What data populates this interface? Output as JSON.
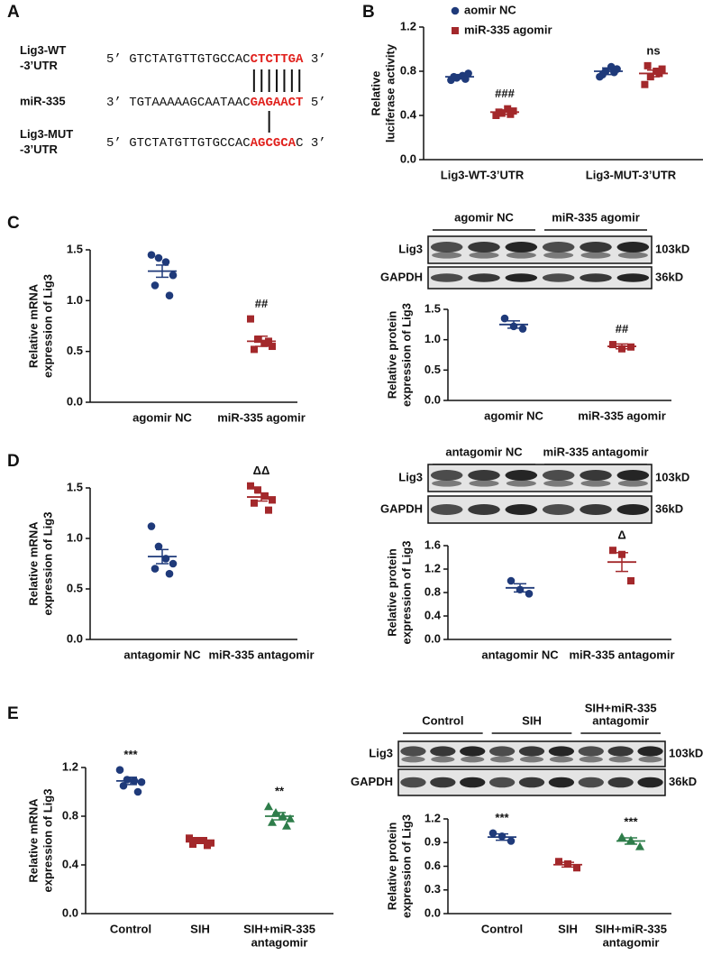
{
  "panel_labels": [
    "A",
    "B",
    "C",
    "D",
    "E"
  ],
  "sequences": {
    "rows": [
      {
        "label": [
          "Lig3-WT",
          "-3’UTR"
        ],
        "prefix": "5’ GTCTATGTTGTGCCAC",
        "highlight": "CTCTTGA",
        "suffix": " 3’"
      },
      {
        "label": [
          "miR-335"
        ],
        "prefix": "3’ TGTAAAAAGCAATAAC",
        "highlight": "GAGAACT",
        "suffix": " 5’"
      },
      {
        "label": [
          "Lig3-MUT",
          "-3’UTR"
        ],
        "prefix": "5’ GTCTATGTTGTGCCAC",
        "highlight": "AGCGCA",
        "suffix": "C 3’"
      }
    ]
  },
  "blots": [
    {
      "groups": [
        [
          "agomir NC"
        ],
        [
          "miR-335 agomir"
        ]
      ],
      "rows": [
        {
          "label": "Lig3",
          "size": "103kD"
        },
        {
          "label": "GAPDH",
          "size": "36kD"
        }
      ]
    },
    {
      "groups": [
        [
          "antagomir NC"
        ],
        [
          "miR-335 antagomir"
        ]
      ],
      "rows": [
        {
          "label": "Lig3",
          "size": "103kD"
        },
        {
          "label": "GAPDH",
          "size": "36kD"
        }
      ]
    },
    {
      "groups": [
        [
          "Control"
        ],
        [
          "SIH"
        ],
        [
          "SIH+miR-335",
          "antagomir"
        ]
      ],
      "rows": [
        {
          "label": "Lig3",
          "size": "103kD"
        },
        {
          "label": "GAPDH",
          "size": "36kD"
        }
      ]
    }
  ],
  "chart_data": [
    {
      "type": "dot",
      "y_label": [
        "Relative",
        "luciferase activity"
      ],
      "categories": [
        [
          "Lig3-WT-3’UTR"
        ],
        [
          "Lig3-MUT-3’UTR"
        ]
      ],
      "series": [
        {
          "name": "aomir NC",
          "color": "#1f3a7a",
          "marker": "circle",
          "points": [
            [
              0.72,
              0.74,
              0.76,
              0.78,
              0.75,
              0.73
            ],
            [
              0.75,
              0.8,
              0.84,
              0.82,
              0.77,
              0.79
            ]
          ],
          "values": [
            0.75,
            0.8
          ],
          "errors": [
            0.02,
            0.03
          ],
          "annotations": [
            null,
            null
          ]
        },
        {
          "name": "miR-335 agomir",
          "color": "#a3282b",
          "marker": "square",
          "points": [
            [
              0.4,
              0.42,
              0.46,
              0.44,
              0.43,
              0.41
            ],
            [
              0.68,
              0.75,
              0.8,
              0.82,
              0.85,
              0.78
            ]
          ],
          "values": [
            0.43,
            0.78
          ],
          "errors": [
            0.02,
            0.03
          ],
          "annotations": [
            "###",
            "ns"
          ]
        }
      ],
      "ylim": [
        0,
        1.2
      ],
      "yticks": [
        {
          "value": 0,
          "label": "0.0"
        },
        0.4,
        0.8,
        1.2
      ],
      "legend": "top"
    },
    {
      "type": "dot",
      "y_label": [
        "Relative mRNA",
        "expression of Lig3"
      ],
      "categories": [
        [
          "agomir NC"
        ],
        [
          "miR-335 agomir"
        ]
      ],
      "colors": [
        "#1f3a7a",
        "#a3282b"
      ],
      "markers": [
        "circle",
        "square"
      ],
      "points": [
        [
          1.45,
          1.42,
          1.38,
          1.25,
          1.15,
          1.05
        ],
        [
          0.82,
          0.62,
          0.58,
          0.55,
          0.52,
          0.6
        ]
      ],
      "values": [
        1.29,
        0.6
      ],
      "errors": [
        0.06,
        0.05
      ],
      "annotations": [
        null,
        "##"
      ],
      "ylim": [
        0,
        1.5
      ],
      "yticks": [
        {
          "value": 0,
          "label": "0.0"
        },
        0.5,
        {
          "value": 1,
          "label": "1.0"
        },
        1.5
      ]
    },
    {
      "type": "dot",
      "y_label": [
        "Relative protein",
        "expression of Lig3"
      ],
      "categories": [
        [
          "agomir NC"
        ],
        [
          "miR-335 agomir"
        ]
      ],
      "colors": [
        "#1f3a7a",
        "#a3282b"
      ],
      "markers": [
        "circle",
        "square"
      ],
      "points": [
        [
          1.35,
          1.22,
          1.18
        ],
        [
          0.92,
          0.85,
          0.88
        ]
      ],
      "values": [
        1.25,
        0.89
      ],
      "errors": [
        0.06,
        0.04
      ],
      "annotations": [
        null,
        "##"
      ],
      "ylim": [
        0,
        1.5
      ],
      "yticks": [
        {
          "value": 0,
          "label": "0.0"
        },
        0.5,
        {
          "value": 1,
          "label": "1.0"
        },
        1.5
      ]
    },
    {
      "type": "dot",
      "y_label": [
        "Relative mRNA",
        "expression of Lig3"
      ],
      "categories": [
        [
          "antagomir NC"
        ],
        [
          "miR-335 antagomir"
        ]
      ],
      "colors": [
        "#1f3a7a",
        "#a3282b"
      ],
      "markers": [
        "circle",
        "square"
      ],
      "points": [
        [
          1.12,
          0.92,
          0.8,
          0.75,
          0.7,
          0.65
        ],
        [
          1.52,
          1.48,
          1.42,
          1.38,
          1.35,
          1.28
        ]
      ],
      "values": [
        0.82,
        1.41
      ],
      "errors": [
        0.07,
        0.04
      ],
      "annotations": [
        null,
        "ΔΔ"
      ],
      "ylim": [
        0,
        1.5
      ],
      "yticks": [
        {
          "value": 0,
          "label": "0.0"
        },
        0.5,
        {
          "value": 1,
          "label": "1.0"
        },
        1.5
      ]
    },
    {
      "type": "dot",
      "y_label": [
        "Relative protein",
        "expression of Lig3"
      ],
      "categories": [
        [
          "antagomir NC"
        ],
        [
          "miR-335 antagomir"
        ]
      ],
      "colors": [
        "#1f3a7a",
        "#a3282b"
      ],
      "markers": [
        "circle",
        "square"
      ],
      "points": [
        [
          1.0,
          0.85,
          0.78
        ],
        [
          1.52,
          1.45,
          1.0
        ]
      ],
      "values": [
        0.88,
        1.32
      ],
      "errors": [
        0.07,
        0.16
      ],
      "annotations": [
        null,
        "Δ"
      ],
      "ylim": [
        0,
        1.6
      ],
      "yticks": [
        {
          "value": 0,
          "label": "0.0"
        },
        0.4,
        0.8,
        1.2,
        1.6
      ]
    },
    {
      "type": "dot",
      "y_label": [
        "Relative mRNA",
        "expression of Lig3"
      ],
      "categories": [
        [
          "Control"
        ],
        [
          "SIH"
        ],
        [
          "SIH+miR-335",
          "antagomir"
        ]
      ],
      "colors": [
        "#1f3a7a",
        "#a3282b",
        "#2e7d4a"
      ],
      "markers": [
        "circle",
        "square",
        "triangle"
      ],
      "points": [
        [
          1.18,
          1.1,
          1.09,
          1.08,
          1.05,
          1.0
        ],
        [
          0.62,
          0.6,
          0.6,
          0.58,
          0.57,
          0.56
        ],
        [
          0.88,
          0.83,
          0.8,
          0.78,
          0.75,
          0.72
        ]
      ],
      "values": [
        1.09,
        0.59,
        0.8
      ],
      "errors": [
        0.03,
        0.01,
        0.03
      ],
      "annotations": [
        "***",
        null,
        "**"
      ],
      "ylim": [
        0,
        1.2
      ],
      "yticks": [
        {
          "value": 0,
          "label": "0.0"
        },
        0.4,
        0.8,
        1.2
      ]
    },
    {
      "type": "dot",
      "y_label": [
        "Relative protein",
        "expression of Lig3"
      ],
      "categories": [
        [
          "Control"
        ],
        [
          "SIH"
        ],
        [
          "SIH+miR-335",
          "antagomir"
        ]
      ],
      "colors": [
        "#1f3a7a",
        "#a3282b",
        "#2e7d4a"
      ],
      "markers": [
        "circle",
        "square",
        "triangle"
      ],
      "points": [
        [
          1.02,
          0.98,
          0.92
        ],
        [
          0.66,
          0.63,
          0.58
        ],
        [
          0.97,
          0.93,
          0.85
        ]
      ],
      "values": [
        0.97,
        0.62,
        0.92
      ],
      "errors": [
        0.04,
        0.03,
        0.04
      ],
      "annotations": [
        "***",
        null,
        "***"
      ],
      "ylim": [
        0,
        1.2
      ],
      "yticks": [
        {
          "value": 0,
          "label": "0.0"
        },
        0.3,
        0.6,
        0.9,
        1.2
      ]
    }
  ]
}
